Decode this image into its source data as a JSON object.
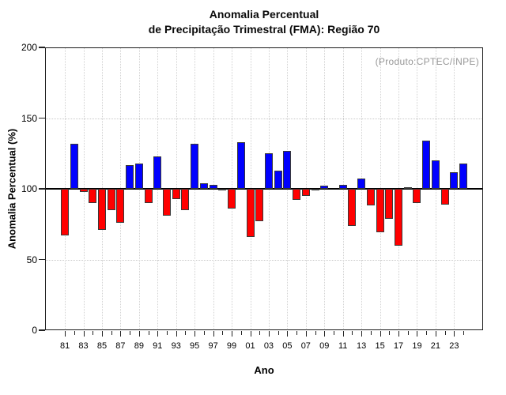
{
  "chart_data": {
    "type": "bar",
    "title_line1": "Anomalia Percentual",
    "title_line2": "de Precipitação Trimestral (FMA): Região 70",
    "annotation": "(Produto:CPTEC/INPE)",
    "ylabel": "Anomalia Percentual (%)",
    "xlabel": "Ano",
    "ylim": [
      0,
      200
    ],
    "baseline": 100,
    "grid": "dotted",
    "y_ticks": [
      0,
      50,
      100,
      150,
      200
    ],
    "x_tick_labels": [
      "81",
      "83",
      "85",
      "87",
      "89",
      "91",
      "93",
      "95",
      "97",
      "99",
      "01",
      "03",
      "05",
      "07",
      "09",
      "11",
      "13",
      "15",
      "17",
      "19",
      "21",
      "23"
    ],
    "years": [
      1981,
      1982,
      1983,
      1984,
      1985,
      1986,
      1987,
      1988,
      1989,
      1990,
      1991,
      1992,
      1993,
      1994,
      1995,
      1996,
      1997,
      1998,
      1999,
      2000,
      2001,
      2002,
      2003,
      2004,
      2005,
      2006,
      2007,
      2008,
      2009,
      2010,
      2011,
      2012,
      2013,
      2014,
      2015,
      2016,
      2017,
      2018,
      2019,
      2020,
      2021,
      2022,
      2023,
      2024
    ],
    "values": [
      67,
      132,
      98,
      90,
      71,
      85,
      76,
      117,
      118,
      90,
      123,
      81,
      93,
      85,
      132,
      104,
      103,
      99,
      86,
      133,
      66,
      77,
      125,
      113,
      127,
      92,
      95,
      99,
      102,
      100,
      103,
      74,
      107,
      88,
      69,
      79,
      60,
      101,
      90,
      134,
      120,
      89,
      112,
      118
    ],
    "colors": {
      "above": "#0000ff",
      "below": "#ff0000",
      "bar_border": "#383838",
      "baseline": "#000000",
      "grid": "#c9c9c9",
      "annotation": "#979797"
    }
  }
}
